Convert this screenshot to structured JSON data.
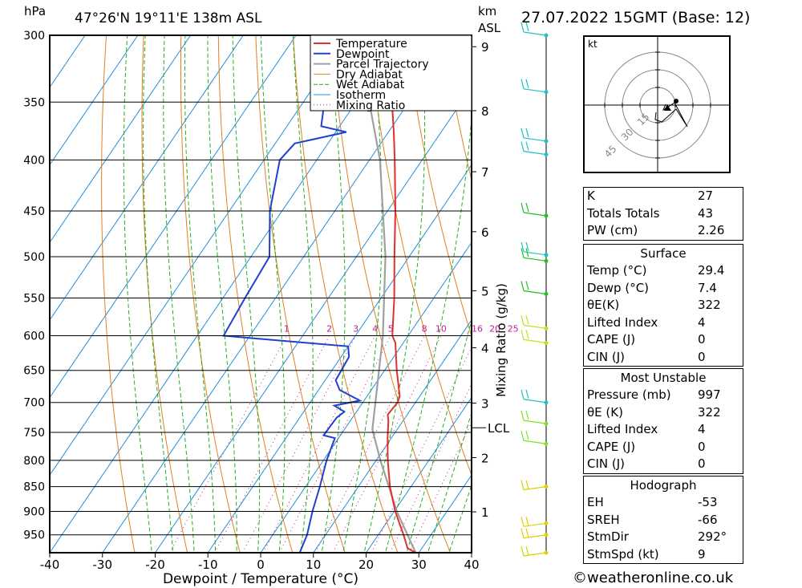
{
  "header": {
    "pressure_unit": "hPa",
    "location": "47°26'N  19°11'E  138m  ASL",
    "km_unit": "km",
    "asl_label": "ASL",
    "datetime": "27.07.2022  15GMT  (Base: 12)"
  },
  "chart_data": {
    "type": "skew-t log-p",
    "xlabel": "Dewpoint / Temperature (°C)",
    "ylabel": "hPa",
    "mixing_ratio_axis_label": "Mixing Ratio (g/kg)",
    "lcl_label": "LCL",
    "x_ticks": [
      -40,
      -30,
      -20,
      -10,
      0,
      10,
      20,
      30,
      40
    ],
    "p_ticks": [
      300,
      350,
      400,
      450,
      500,
      550,
      600,
      650,
      700,
      750,
      800,
      850,
      900,
      950
    ],
    "xlim": [
      -40,
      40
    ],
    "plim": [
      300,
      990
    ],
    "km_ticks": [
      {
        "km": 1,
        "p": 901
      },
      {
        "km": 2,
        "p": 795
      },
      {
        "km": 3,
        "p": 701
      },
      {
        "km": 4,
        "p": 617
      },
      {
        "km": 5,
        "p": 541
      },
      {
        "km": 6,
        "p": 472
      },
      {
        "km": 7,
        "p": 411
      },
      {
        "km": 8,
        "p": 357
      },
      {
        "km": 9,
        "p": 308
      }
    ],
    "mixing_ratio_labels": [
      1,
      2,
      3,
      4,
      5,
      8,
      10,
      16,
      20,
      25
    ],
    "legend": [
      "Temperature",
      "Dewpoint",
      "Parcel Trajectory",
      "Dry Adiabat",
      "Wet Adiabat",
      "Isotherm",
      "Mixing Ratio"
    ],
    "colors": {
      "temperature": "#e03030",
      "dewpoint": "#2040d0",
      "parcel": "#a0a0a0",
      "dry_adiabat": "#e08020",
      "wet_adiabat": "#20b020",
      "isotherm": "#2090e0",
      "mixing_ratio": "#c02090"
    },
    "temperature": [
      {
        "p": 990,
        "t": 29.4
      },
      {
        "p": 980,
        "t": 27.3
      },
      {
        "p": 950,
        "t": 24.8
      },
      {
        "p": 900,
        "t": 20.2
      },
      {
        "p": 850,
        "t": 16.0
      },
      {
        "p": 800,
        "t": 12.2
      },
      {
        "p": 760,
        "t": 9.3
      },
      {
        "p": 730,
        "t": 7.2
      },
      {
        "p": 720,
        "t": 6.3
      },
      {
        "p": 700,
        "t": 6.6
      },
      {
        "p": 690,
        "t": 6.2
      },
      {
        "p": 650,
        "t": 2.3
      },
      {
        "p": 610,
        "t": -1.5
      },
      {
        "p": 600,
        "t": -3.0
      },
      {
        "p": 550,
        "t": -7.5
      },
      {
        "p": 500,
        "t": -12.8
      },
      {
        "p": 450,
        "t": -18.5
      },
      {
        "p": 400,
        "t": -25.2
      },
      {
        "p": 375,
        "t": -29.0
      },
      {
        "p": 350,
        "t": -33.2
      },
      {
        "p": 300,
        "t": -42.0
      }
    ],
    "dewpoint": [
      {
        "p": 990,
        "t": 7.4
      },
      {
        "p": 950,
        "t": 6.5
      },
      {
        "p": 900,
        "t": 4.5
      },
      {
        "p": 850,
        "t": 2.7
      },
      {
        "p": 800,
        "t": 0.6
      },
      {
        "p": 760,
        "t": -0.7
      },
      {
        "p": 755,
        "t": -3.2
      },
      {
        "p": 725,
        "t": -3.0
      },
      {
        "p": 715,
        "t": -2.3
      },
      {
        "p": 705,
        "t": -5.0
      },
      {
        "p": 697,
        "t": -0.8
      },
      {
        "p": 680,
        "t": -6.0
      },
      {
        "p": 665,
        "t": -8.0
      },
      {
        "p": 630,
        "t": -8.5
      },
      {
        "p": 615,
        "t": -10.0
      },
      {
        "p": 600,
        "t": -35.0
      },
      {
        "p": 550,
        "t": -35.8
      },
      {
        "p": 500,
        "t": -36.5
      },
      {
        "p": 450,
        "t": -42.3
      },
      {
        "p": 400,
        "t": -47.0
      },
      {
        "p": 385,
        "t": -46.3
      },
      {
        "p": 375,
        "t": -38.0
      },
      {
        "p": 370,
        "t": -43.5
      },
      {
        "p": 350,
        "t": -46.0
      },
      {
        "p": 300,
        "t": -56.0
      }
    ],
    "parcel": [
      {
        "p": 990,
        "t": 29.4
      },
      {
        "p": 900,
        "t": 20.5
      },
      {
        "p": 800,
        "t": 10.8
      },
      {
        "p": 745,
        "t": 5.3
      },
      {
        "p": 700,
        "t": 2.4
      },
      {
        "p": 600,
        "t": -4.8
      },
      {
        "p": 500,
        "t": -14.5
      },
      {
        "p": 400,
        "t": -28.0
      },
      {
        "p": 350,
        "t": -37.5
      },
      {
        "p": 300,
        "t": -49.0
      }
    ],
    "lcl_pressure": 742,
    "wind_barbs": [
      {
        "p": 990,
        "color": "#e0d000"
      },
      {
        "p": 950,
        "color": "#e0d000"
      },
      {
        "p": 925,
        "color": "#e0d000"
      },
      {
        "p": 850,
        "color": "#e0d000"
      },
      {
        "p": 770,
        "color": "#80e020"
      },
      {
        "p": 735,
        "color": "#80e020"
      },
      {
        "p": 700,
        "color": "#20c0c0"
      },
      {
        "p": 610,
        "color": "#c0e020"
      },
      {
        "p": 590,
        "color": "#c0e020"
      },
      {
        "p": 545,
        "color": "#20c020"
      },
      {
        "p": 505,
        "color": "#20c020"
      },
      {
        "p": 498,
        "color": "#20c0c0"
      },
      {
        "p": 455,
        "color": "#20c020"
      },
      {
        "p": 395,
        "color": "#20c0c0"
      },
      {
        "p": 383,
        "color": "#20c0c0"
      },
      {
        "p": 342,
        "color": "#20c0c0"
      },
      {
        "p": 300,
        "color": "#20c0c0"
      }
    ]
  },
  "hodograph": {
    "unit": "kt",
    "ring_labels": [
      "15",
      "30",
      "45"
    ]
  },
  "indices": {
    "rows": [
      {
        "label": "K",
        "value": "27"
      },
      {
        "label": "Totals Totals",
        "value": "43"
      },
      {
        "label": "PW (cm)",
        "value": "2.26"
      }
    ]
  },
  "surface": {
    "title": "Surface",
    "rows": [
      {
        "label": "Temp (°C)",
        "value": "29.4"
      },
      {
        "label": "Dewp (°C)",
        "value": "7.4"
      },
      {
        "label": "θE(K)",
        "value": "322"
      },
      {
        "label": "Lifted Index",
        "value": "4"
      },
      {
        "label": "CAPE (J)",
        "value": "0"
      },
      {
        "label": "CIN (J)",
        "value": "0"
      }
    ]
  },
  "most_unstable": {
    "title": "Most Unstable",
    "rows": [
      {
        "label": "Pressure (mb)",
        "value": "997"
      },
      {
        "label": "θE (K)",
        "value": "322"
      },
      {
        "label": "Lifted Index",
        "value": "4"
      },
      {
        "label": "CAPE (J)",
        "value": "0"
      },
      {
        "label": "CIN (J)",
        "value": "0"
      }
    ]
  },
  "hodograph_table": {
    "title": "Hodograph",
    "rows": [
      {
        "label": "EH",
        "value": "-53"
      },
      {
        "label": "SREH",
        "value": "-66"
      },
      {
        "label": "StmDir",
        "value": "292°"
      },
      {
        "label": "StmSpd (kt)",
        "value": "9"
      }
    ]
  },
  "footer": {
    "copyright": "©weatheronline.co.uk"
  }
}
